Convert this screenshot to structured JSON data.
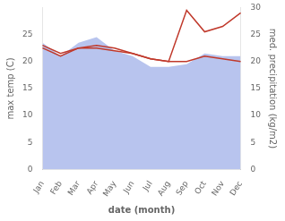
{
  "chart_data": {
    "type": "line",
    "categories": [
      "Jan",
      "Feb",
      "Mar",
      "Apr",
      "May",
      "Jun",
      "Jul",
      "Aug",
      "Sep",
      "Oct",
      "Nov",
      "Dec"
    ],
    "xlabel": "date (month)",
    "ylabel": "max temp (C)",
    "y2label": "med. precipitation (kg/m2)",
    "series": [
      {
        "type": "area",
        "color": "#b8c4ee",
        "values": [
          23.5,
          21.0,
          23.5,
          24.5,
          22.0,
          21.0,
          19.0,
          19.0,
          19.5,
          21.5,
          21.0,
          21.0
        ]
      },
      {
        "type": "line",
        "color": "#c0392b",
        "values": [
          22.5,
          21.0,
          22.5,
          22.5,
          22.0,
          21.5,
          20.5,
          20.0,
          20.0,
          21.0,
          20.5,
          20.0
        ]
      },
      {
        "type": "line",
        "color": "#c0392b",
        "axis": "y2",
        "values": [
          23.0,
          21.5,
          22.5,
          23.0,
          22.5,
          21.5,
          20.5,
          20.0,
          29.5,
          25.5,
          26.5,
          29.0
        ]
      }
    ],
    "ylim": [
      0,
      30
    ],
    "yticks": [
      0,
      5,
      10,
      15,
      20,
      25
    ],
    "y2lim": [
      0,
      30
    ],
    "y2ticks": [
      0,
      5,
      10,
      15,
      20,
      25,
      30
    ],
    "grid": false
  }
}
